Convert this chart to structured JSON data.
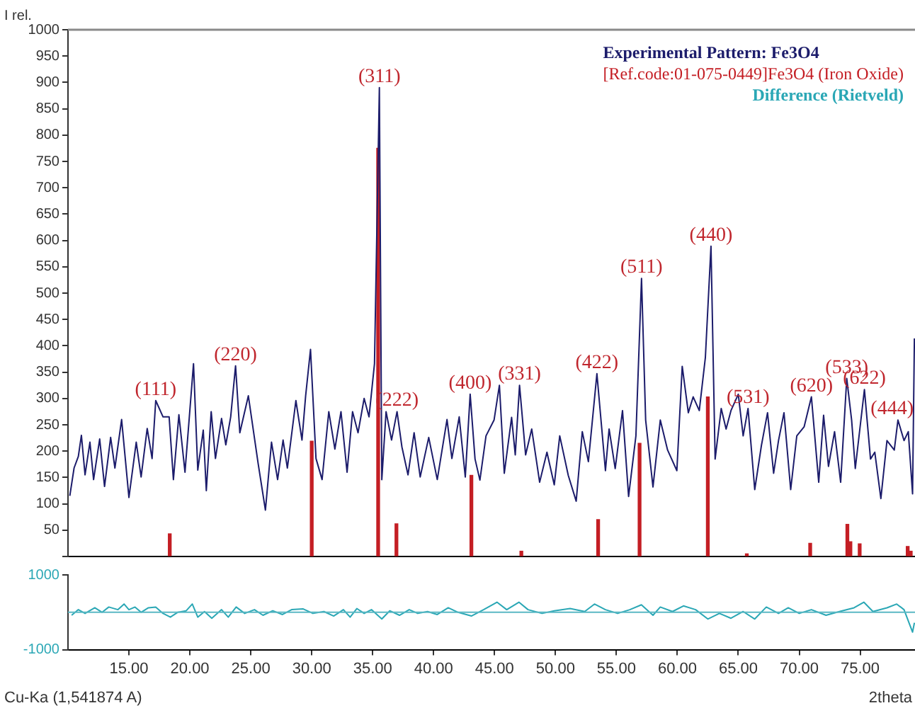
{
  "chart_data": [
    {
      "type": "line",
      "ylabel": "I rel.",
      "xlim": [
        10,
        79.5
      ],
      "ylim": [
        0,
        1000
      ],
      "yticks": [
        {
          "value": 0,
          "label": null
        },
        50,
        100,
        150,
        200,
        250,
        300,
        350,
        400,
        450,
        500,
        550,
        600,
        650,
        700,
        750,
        800,
        850,
        900,
        950,
        1000
      ],
      "tick_labels": "y",
      "legend": "top right",
      "series": [
        {
          "name": "Experimental Pattern: Fe3O4",
          "color": "#1c1c6b",
          "x": [
            10.15,
            10.5,
            10.85,
            11.1,
            11.4,
            11.8,
            12.1,
            12.6,
            13.0,
            13.5,
            13.85,
            14.4,
            15.0,
            15.6,
            16.0,
            16.5,
            16.9,
            17.2,
            17.8,
            18.3,
            18.65,
            19.1,
            19.6,
            20.3,
            20.65,
            21.1,
            21.35,
            21.75,
            22.1,
            22.6,
            22.95,
            23.35,
            23.75,
            24.1,
            24.8,
            25.6,
            26.2,
            26.7,
            27.2,
            27.65,
            28.0,
            28.7,
            29.2,
            29.5,
            29.9,
            30.35,
            30.85,
            31.4,
            31.9,
            32.4,
            32.9,
            33.35,
            33.8,
            34.3,
            34.7,
            35.15,
            35.55,
            35.75,
            36.1,
            36.55,
            37.0,
            37.4,
            37.9,
            38.4,
            38.9,
            39.6,
            40.3,
            41.1,
            41.5,
            42.1,
            42.6,
            43.0,
            43.4,
            43.8,
            44.3,
            44.96,
            45.4,
            45.8,
            46.4,
            46.7,
            47.05,
            47.55,
            48.05,
            48.7,
            49.3,
            49.9,
            50.35,
            51.05,
            51.7,
            52.2,
            52.7,
            53.4,
            53.8,
            54.1,
            54.4,
            54.9,
            55.5,
            56.0,
            56.6,
            57.06,
            57.4,
            58.0,
            58.6,
            59.2,
            59.96,
            60.4,
            60.9,
            61.3,
            61.8,
            62.3,
            62.76,
            63.1,
            63.6,
            64.0,
            64.4,
            65.0,
            65.4,
            65.8,
            66.35,
            66.9,
            67.4,
            67.9,
            68.3,
            68.75,
            69.3,
            69.8,
            70.4,
            71.0,
            71.6,
            72.0,
            72.4,
            72.9,
            73.4,
            73.9,
            74.3,
            74.6,
            75.35,
            75.85,
            76.2,
            76.7,
            77.2,
            77.8,
            78.1,
            78.6,
            78.95,
            79.3,
            79.45
          ],
          "values": [
            115,
            168,
            190,
            230,
            155,
            217,
            146,
            223,
            133,
            226,
            168,
            260,
            112,
            217,
            151,
            243,
            186,
            296,
            265,
            265,
            146,
            269,
            160,
            366,
            164,
            240,
            125,
            275,
            186,
            262,
            212,
            265,
            362,
            235,
            305,
            177,
            88,
            217,
            146,
            221,
            168,
            296,
            221,
            305,
            393,
            186,
            146,
            275,
            204,
            275,
            160,
            275,
            235,
            300,
            265,
            366,
            890,
            146,
            275,
            221,
            275,
            208,
            155,
            235,
            151,
            226,
            146,
            260,
            186,
            265,
            151,
            308,
            185,
            145,
            229,
            259,
            325,
            158,
            264,
            193,
            325,
            193,
            242,
            141,
            198,
            136,
            229,
            154,
            105,
            237,
            180,
            347,
            242,
            163,
            242,
            167,
            277,
            114,
            229,
            528,
            259,
            132,
            259,
            202,
            163,
            361,
            273,
            303,
            277,
            378,
            589,
            185,
            281,
            242,
            277,
            308,
            229,
            281,
            127,
            211,
            273,
            158,
            220,
            273,
            127,
            229,
            246,
            303,
            141,
            268,
            171,
            237,
            141,
            338,
            259,
            167,
            317,
            185,
            198,
            110,
            220,
            202,
            259,
            220,
            237,
            119,
            414
          ]
        },
        {
          "name": "[Ref.code:01-075-0449]Fe3O4 (Iron Oxide)",
          "color": "#c41e24",
          "type": "bar",
          "x": [
            18.35,
            30.0,
            35.45,
            36.95,
            43.1,
            47.2,
            53.5,
            56.9,
            62.5,
            65.7,
            70.9,
            73.95,
            74.2,
            74.96,
            78.9,
            79.15
          ],
          "values": [
            43,
            219,
            775,
            62,
            154,
            10,
            70,
            215,
            303,
            5,
            25,
            61,
            28,
            24,
            19,
            10
          ]
        }
      ],
      "annotations": [
        {
          "text": "(111)",
          "x": 17.2,
          "y": 296
        },
        {
          "text": "(220)",
          "x": 23.75,
          "y": 362
        },
        {
          "text": "(311)",
          "x": 35.55,
          "y": 890
        },
        {
          "text": "(222)",
          "x": 37.0,
          "y": 275
        },
        {
          "text": "(400)",
          "x": 43.0,
          "y": 308
        },
        {
          "text": "(331)",
          "x": 47.05,
          "y": 325
        },
        {
          "text": "(422)",
          "x": 53.4,
          "y": 347
        },
        {
          "text": "(511)",
          "x": 57.06,
          "y": 528
        },
        {
          "text": "(440)",
          "x": 62.76,
          "y": 589
        },
        {
          "text": "(531)",
          "x": 65.8,
          "y": 281
        },
        {
          "text": "(620)",
          "x": 71.0,
          "y": 303
        },
        {
          "text": "(533)",
          "x": 73.9,
          "y": 338
        },
        {
          "text": "(622)",
          "x": 75.35,
          "y": 317
        },
        {
          "text": "(444)",
          "x": 78.1,
          "y": 259
        }
      ]
    },
    {
      "type": "line",
      "xlabel": "2theta",
      "xlim": [
        10,
        79.5
      ],
      "ylim": [
        -1000,
        1000
      ],
      "xticks": [
        {
          "value": 15,
          "label": "15.00"
        },
        {
          "value": 20,
          "label": "20.00"
        },
        {
          "value": 25,
          "label": "25.00"
        },
        {
          "value": 30,
          "label": "30.00"
        },
        {
          "value": 35,
          "label": "35.00"
        },
        {
          "value": 40,
          "label": "40.00"
        },
        {
          "value": 45,
          "label": "45.00"
        },
        {
          "value": 50,
          "label": "50.00"
        },
        {
          "value": 55,
          "label": "55.00"
        },
        {
          "value": 60,
          "label": "60.00"
        },
        {
          "value": 65,
          "label": "65.00"
        },
        {
          "value": 70,
          "label": "70.00"
        },
        {
          "value": 75,
          "label": "75.00"
        }
      ],
      "yticks": [
        -1000,
        1000
      ],
      "legend": "top right",
      "ref_lines": [
        {
          "axis": "y",
          "value": 0,
          "color": "#5bb8c4"
        }
      ],
      "annotations": [
        "Cu-Ka (1,541874 A)"
      ],
      "series": [
        {
          "name": "Difference (Rietveld)",
          "color": "#2aa7b5",
          "x": [
            10.3,
            10.85,
            11.4,
            12.2,
            12.8,
            13.35,
            14.1,
            14.6,
            15.0,
            15.5,
            16.0,
            16.6,
            17.2,
            17.8,
            18.4,
            19.0,
            19.7,
            20.2,
            20.65,
            21.2,
            21.8,
            22.6,
            23.15,
            23.8,
            24.5,
            25.3,
            26.0,
            26.8,
            27.6,
            28.35,
            29.3,
            30.1,
            31.0,
            31.8,
            32.6,
            33.15,
            33.7,
            34.3,
            34.9,
            35.75,
            36.4,
            37.2,
            38.0,
            38.7,
            39.5,
            40.3,
            41.2,
            42.0,
            43.1,
            44.1,
            45.2,
            46.0,
            47.0,
            47.75,
            48.9,
            49.9,
            51.2,
            52.4,
            53.2,
            54.1,
            55.1,
            56.1,
            57.05,
            58.0,
            58.6,
            59.6,
            60.5,
            61.5,
            62.5,
            63.45,
            64.4,
            65.4,
            66.35,
            67.3,
            68.3,
            69.1,
            70.0,
            71.0,
            72.2,
            73.3,
            74.5,
            75.3,
            76.05,
            77.2,
            78.0,
            78.6,
            79.3,
            79.45
          ],
          "values": [
            -80,
            70,
            -30,
            120,
            0,
            140,
            70,
            220,
            70,
            140,
            0,
            120,
            140,
            -30,
            -130,
            0,
            40,
            220,
            -130,
            20,
            -160,
            70,
            -130,
            140,
            -30,
            70,
            -80,
            40,
            -60,
            70,
            90,
            -30,
            20,
            -100,
            70,
            -130,
            100,
            -30,
            70,
            -180,
            40,
            -80,
            70,
            -30,
            20,
            -60,
            120,
            0,
            -100,
            70,
            270,
            70,
            270,
            70,
            -30,
            40,
            100,
            20,
            220,
            70,
            -30,
            70,
            200,
            -80,
            140,
            20,
            170,
            70,
            -180,
            -30,
            -160,
            20,
            -180,
            140,
            -30,
            120,
            -30,
            70,
            -80,
            20,
            120,
            270,
            20,
            120,
            220,
            70,
            -530,
            -280
          ]
        }
      ]
    }
  ]
}
